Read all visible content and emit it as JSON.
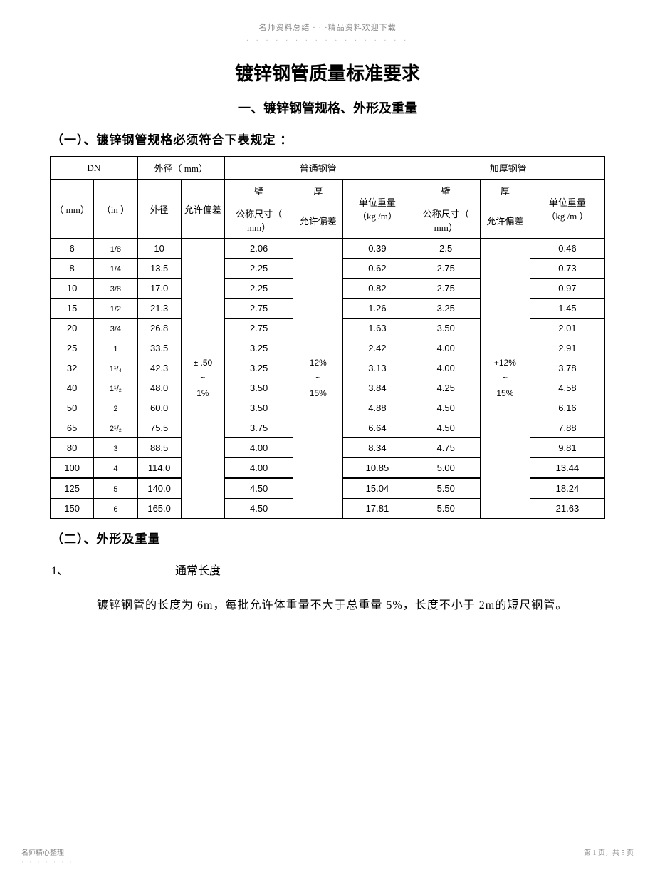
{
  "watermark": {
    "top_text": "名师资料总结 · · ·精品资料欢迎下载",
    "top_dots": "· · · · · · · · · · · · · · · · ·",
    "footer_left": "名师精心整理",
    "footer_left_dots": "· · · · · · ·",
    "footer_right": "第 1 页，共 5 页"
  },
  "doc": {
    "title": "镀锌钢管质量标准要求",
    "section1": "一、镀锌钢管规格、外形及重量",
    "sub1": "（一）、镀锌钢管规格必须符合下表规定 ：",
    "sub2": "（二）、外形及重量",
    "heading_num": "1、",
    "heading_txt": "通常长度",
    "body": "镀锌钢管的长度为 6m，每批允许体重量不大于总重量 5%，长度不小于 2m的短尺钢管。"
  },
  "table": {
    "headers": {
      "dn": "DN",
      "od": "外径（ mm）",
      "normal": "普通钢管",
      "thick": "加厚钢管",
      "mm": "（ mm）",
      "in": "（in ）",
      "od2": "外径",
      "allow": "允许偏差",
      "wall": "壁",
      "thk": "厚",
      "unitw": "单位重量",
      "nominal": "公称尺寸（ mm）",
      "nominal2": "公称尺寸（ mm）",
      "allow2": "允许偏差",
      "kgm": "（kg /m）",
      "kgm2": "（kg /m ）"
    },
    "tol_od": "± .50\n~\n1%",
    "tol_wall_n": "12%\n~\n15%",
    "tol_wall_t": "+12%\n~\n15%",
    "rows": [
      {
        "dn_mm": "6",
        "dn_in": "1/8",
        "od": "10",
        "n_wall": "2.06",
        "n_w": "0.39",
        "t_wall": "2.5",
        "t_w": "0.46"
      },
      {
        "dn_mm": "8",
        "dn_in": "1/4",
        "od": "13.5",
        "n_wall": "2.25",
        "n_w": "0.62",
        "t_wall": "2.75",
        "t_w": "0.73"
      },
      {
        "dn_mm": "10",
        "dn_in": "3/8",
        "od": "17.0",
        "n_wall": "2.25",
        "n_w": "0.82",
        "t_wall": "2.75",
        "t_w": "0.97"
      },
      {
        "dn_mm": "15",
        "dn_in": "1/2",
        "od": "21.3",
        "n_wall": "2.75",
        "n_w": "1.26",
        "t_wall": "3.25",
        "t_w": "1.45"
      },
      {
        "dn_mm": "20",
        "dn_in": "3/4",
        "od": "26.8",
        "n_wall": "2.75",
        "n_w": "1.63",
        "t_wall": "3.50",
        "t_w": "2.01"
      },
      {
        "dn_mm": "25",
        "dn_in": "1",
        "od": "33.5",
        "n_wall": "3.25",
        "n_w": "2.42",
        "t_wall": "4.00",
        "t_w": "2.91"
      },
      {
        "dn_mm": "32",
        "dn_in": "1¹/₄",
        "od": "42.3",
        "n_wall": "3.25",
        "n_w": "3.13",
        "t_wall": "4.00",
        "t_w": "3.78"
      },
      {
        "dn_mm": "40",
        "dn_in": "1¹/₂",
        "od": "48.0",
        "n_wall": "3.50",
        "n_w": "3.84",
        "t_wall": "4.25",
        "t_w": "4.58"
      },
      {
        "dn_mm": "50",
        "dn_in": "2",
        "od": "60.0",
        "n_wall": "3.50",
        "n_w": "4.88",
        "t_wall": "4.50",
        "t_w": "6.16"
      },
      {
        "dn_mm": "65",
        "dn_in": "2¹/₂",
        "od": "75.5",
        "n_wall": "3.75",
        "n_w": "6.64",
        "t_wall": "4.50",
        "t_w": "7.88"
      },
      {
        "dn_mm": "80",
        "dn_in": "3",
        "od": "88.5",
        "n_wall": "4.00",
        "n_w": "8.34",
        "t_wall": "4.75",
        "t_w": "9.81"
      },
      {
        "dn_mm": "100",
        "dn_in": "4",
        "od": "114.0",
        "n_wall": "4.00",
        "n_w": "10.85",
        "t_wall": "5.00",
        "t_w": "13.44"
      },
      {
        "dn_mm": "125",
        "dn_in": "5",
        "od": "140.0",
        "n_wall": "4.50",
        "n_w": "15.04",
        "t_wall": "5.50",
        "t_w": "18.24"
      },
      {
        "dn_mm": "150",
        "dn_in": "6",
        "od": "165.0",
        "n_wall": "4.50",
        "n_w": "17.81",
        "t_wall": "5.50",
        "t_w": "21.63"
      }
    ]
  },
  "style": {
    "page_bg": "#ffffff",
    "text_color": "#000000",
    "watermark_color": "#888888",
    "border_color": "#000000",
    "title_fontsize": 26,
    "section_fontsize": 18,
    "body_fontsize": 16,
    "table_fontsize": 13
  }
}
